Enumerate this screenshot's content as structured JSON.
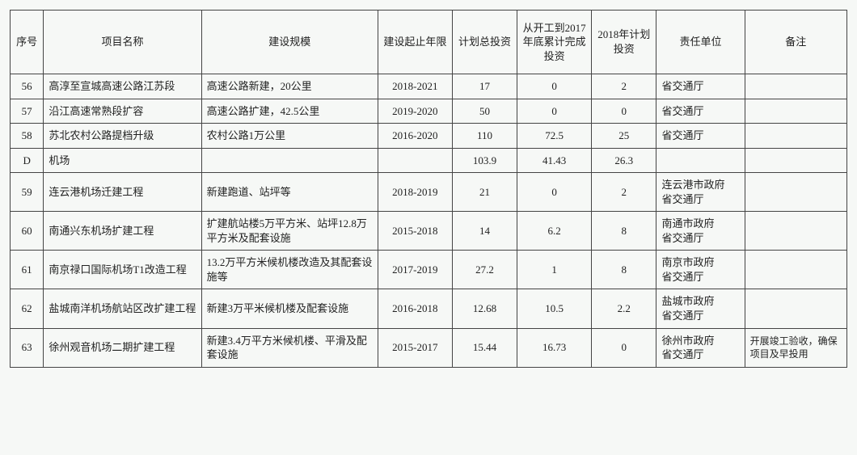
{
  "columns": [
    {
      "key": "seq",
      "label": "序号"
    },
    {
      "key": "name",
      "label": "项目名称"
    },
    {
      "key": "scale",
      "label": "建设规模"
    },
    {
      "key": "period",
      "label": "建设起止年限"
    },
    {
      "key": "totalInv",
      "label": "计划总投资"
    },
    {
      "key": "doneInv",
      "label": "从开工到2017年底累计完成投资"
    },
    {
      "key": "planInv",
      "label": "2018年计划投资"
    },
    {
      "key": "unit",
      "label": "责任单位"
    },
    {
      "key": "note",
      "label": "备注"
    }
  ],
  "rows": [
    {
      "seq": "56",
      "name": "高淳至宣城高速公路江苏段",
      "scale": "高速公路新建，20公里",
      "period": "2018-2021",
      "totalInv": "17",
      "doneInv": "0",
      "planInv": "2",
      "unit": "省交通厅",
      "note": ""
    },
    {
      "seq": "57",
      "name": "沿江高速常熟段扩容",
      "scale": "高速公路扩建，42.5公里",
      "period": "2019-2020",
      "totalInv": "50",
      "doneInv": "0",
      "planInv": "0",
      "unit": "省交通厅",
      "note": ""
    },
    {
      "seq": "58",
      "name": "苏北农村公路提档升级",
      "scale": "农村公路1万公里",
      "period": "2016-2020",
      "totalInv": "110",
      "doneInv": "72.5",
      "planInv": "25",
      "unit": "省交通厅",
      "note": ""
    },
    {
      "seq": "D",
      "name": "机场",
      "scale": "",
      "period": "",
      "totalInv": "103.9",
      "doneInv": "41.43",
      "planInv": "26.3",
      "unit": "",
      "note": ""
    },
    {
      "seq": "59",
      "name": "连云港机场迁建工程",
      "scale": "新建跑道、站坪等",
      "period": "2018-2019",
      "totalInv": "21",
      "doneInv": "0",
      "planInv": "2",
      "unit": "连云港市政府\n省交通厅",
      "note": ""
    },
    {
      "seq": "60",
      "name": "南通兴东机场扩建工程",
      "scale": "扩建航站楼5万平方米、站坪12.8万平方米及配套设施",
      "period": "2015-2018",
      "totalInv": "14",
      "doneInv": "6.2",
      "planInv": "8",
      "unit": "南通市政府\n省交通厅",
      "note": ""
    },
    {
      "seq": "61",
      "name": "南京禄口国际机场T1改造工程",
      "scale": "13.2万平方米候机楼改造及其配套设施等",
      "period": "2017-2019",
      "totalInv": "27.2",
      "doneInv": "1",
      "planInv": "8",
      "unit": "南京市政府\n省交通厅",
      "note": ""
    },
    {
      "seq": "62",
      "name": "盐城南洋机场航站区改扩建工程",
      "scale": "新建3万平米候机楼及配套设施",
      "period": "2016-2018",
      "totalInv": "12.68",
      "doneInv": "10.5",
      "planInv": "2.2",
      "unit": "盐城市政府\n省交通厅",
      "note": ""
    },
    {
      "seq": "63",
      "name": "徐州观音机场二期扩建工程",
      "scale": "新建3.4万平方米候机楼、平滑及配套设施",
      "period": "2015-2017",
      "totalInv": "15.44",
      "doneInv": "16.73",
      "planInv": "0",
      "unit": "徐州市政府\n省交通厅",
      "note": "开展竣工验收，确保项目及早投用"
    }
  ],
  "style": {
    "background_color": "#f6f8f6",
    "border_color": "#444444",
    "font_family": "SimSun",
    "header_fontsize": 13,
    "cell_fontsize": 13,
    "note_fontsize": 12
  }
}
